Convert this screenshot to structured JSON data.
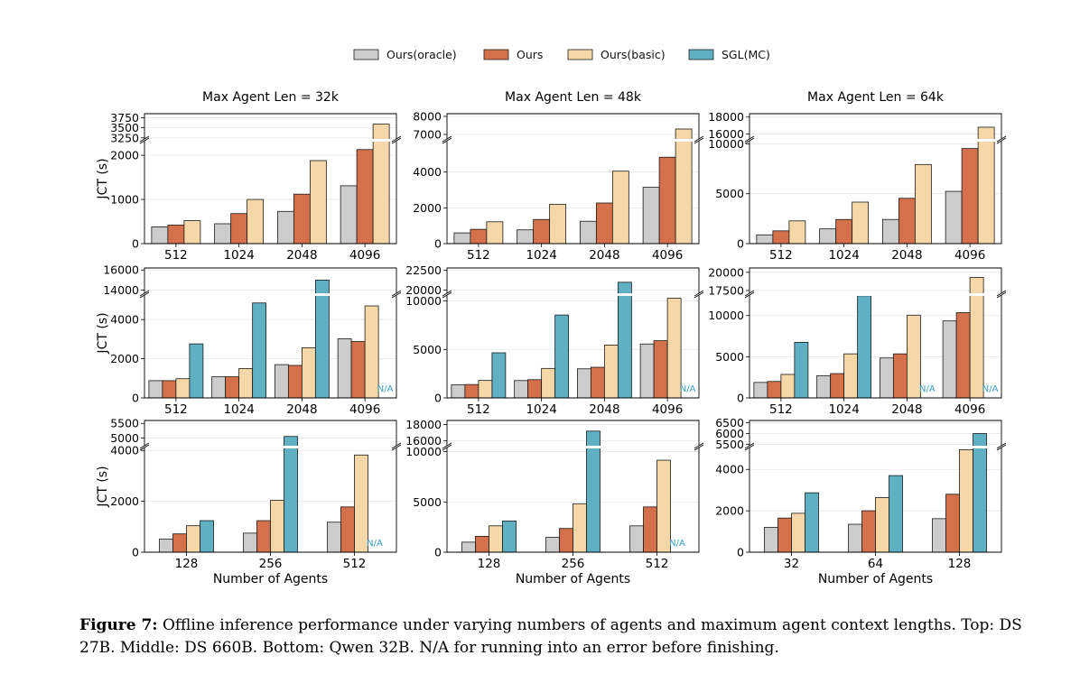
{
  "colors": {
    "oracle": "#cccccc",
    "ours": "#d4704a",
    "basic": "#f5d7a8",
    "sgl": "#5fb0c3",
    "na": "#3a9bc0"
  },
  "legend": [
    {
      "key": "oracle",
      "label": "Ours(oracle)"
    },
    {
      "key": "ours",
      "label": "Ours"
    },
    {
      "key": "basic",
      "label": "Ours(basic)"
    },
    {
      "key": "sgl",
      "label": "SGL(MC)"
    }
  ],
  "caption": {
    "prefix": "Figure 7:",
    "text": "Offline inference performance under varying numbers of agents and maximum agent context lengths. Top: DS 27B. Middle: DS 660B. Bottom: Qwen 32B. N/A for running into an error before finishing."
  },
  "chart_data": [
    {
      "type": "bar",
      "title": "Max Agent Len = 32k",
      "ylabel": "JCT (s)",
      "xlabel": "",
      "categories": [
        "512",
        "1024",
        "2048",
        "4096"
      ],
      "series": [
        {
          "name": "Ours(oracle)",
          "key": "oracle",
          "values": [
            380,
            450,
            730,
            1310
          ]
        },
        {
          "name": "Ours",
          "key": "ours",
          "values": [
            420,
            680,
            1120,
            2130
          ]
        },
        {
          "name": "Ours(basic)",
          "key": "basic",
          "values": [
            520,
            1000,
            1880,
            3590
          ]
        }
      ],
      "lower_ylim": [
        0,
        2350
      ],
      "lower_ticks": [
        0,
        1000,
        2000
      ],
      "upper_ylim": [
        3200,
        3850
      ],
      "upper_ticks": [
        3250,
        3500,
        3750
      ],
      "na": []
    },
    {
      "type": "bar",
      "title": "Max Agent Len = 48k",
      "ylabel": "",
      "xlabel": "",
      "categories": [
        "512",
        "1024",
        "2048",
        "4096"
      ],
      "series": [
        {
          "name": "Ours(oracle)",
          "key": "oracle",
          "values": [
            600,
            770,
            1250,
            3150
          ]
        },
        {
          "name": "Ours",
          "key": "ours",
          "values": [
            800,
            1350,
            2270,
            4830
          ]
        },
        {
          "name": "Ours(basic)",
          "key": "basic",
          "values": [
            1220,
            2200,
            4050,
            7300
          ]
        }
      ],
      "lower_ylim": [
        0,
        5800
      ],
      "lower_ticks": [
        0,
        2000,
        4000
      ],
      "upper_ylim": [
        6700,
        8150
      ],
      "upper_ticks": [
        7000,
        8000
      ],
      "na": []
    },
    {
      "type": "bar",
      "title": "Max Agent Len = 64k",
      "ylabel": "",
      "xlabel": "",
      "categories": [
        "512",
        "1024",
        "2048",
        "4096"
      ],
      "series": [
        {
          "name": "Ours(oracle)",
          "key": "oracle",
          "values": [
            880,
            1480,
            2420,
            5240
          ]
        },
        {
          "name": "Ours",
          "key": "ours",
          "values": [
            1280,
            2420,
            4540,
            9530
          ]
        },
        {
          "name": "Ours(basic)",
          "key": "basic",
          "values": [
            2280,
            4160,
            7930,
            16800
          ]
        }
      ],
      "lower_ylim": [
        0,
        10400
      ],
      "lower_ticks": [
        0,
        5000,
        10000
      ],
      "upper_ylim": [
        15300,
        18400
      ],
      "upper_ticks": [
        16000,
        18000
      ],
      "na": []
    },
    {
      "type": "bar",
      "title": "",
      "ylabel": "JCT (s)",
      "xlabel": "",
      "categories": [
        "512",
        "1024",
        "2048",
        "4096"
      ],
      "series": [
        {
          "name": "Ours(oracle)",
          "key": "oracle",
          "values": [
            880,
            1080,
            1700,
            3020
          ]
        },
        {
          "name": "Ours",
          "key": "ours",
          "values": [
            880,
            1080,
            1660,
            2880
          ]
        },
        {
          "name": "Ours(basic)",
          "key": "basic",
          "values": [
            980,
            1500,
            2560,
            4700
          ]
        },
        {
          "name": "SGL(MC)",
          "key": "sgl",
          "values": [
            2760,
            4850,
            15000,
            null
          ]
        }
      ],
      "lower_ylim": [
        0,
        5300
      ],
      "lower_ticks": [
        0,
        2000,
        4000
      ],
      "upper_ylim": [
        13600,
        16200
      ],
      "upper_ticks": [
        14000,
        16000
      ],
      "na": [
        "4096"
      ]
    },
    {
      "type": "bar",
      "title": "",
      "ylabel": "",
      "xlabel": "",
      "categories": [
        "512",
        "1024",
        "2048",
        "4096"
      ],
      "series": [
        {
          "name": "Ours(oracle)",
          "key": "oracle",
          "values": [
            1350,
            1790,
            3000,
            5560
          ]
        },
        {
          "name": "Ours",
          "key": "ours",
          "values": [
            1380,
            1880,
            3160,
            5900
          ]
        },
        {
          "name": "Ours(basic)",
          "key": "basic",
          "values": [
            1800,
            3040,
            5450,
            10280
          ]
        },
        {
          "name": "SGL(MC)",
          "key": "sgl",
          "values": [
            4650,
            8550,
            21000,
            null
          ]
        }
      ],
      "lower_ylim": [
        0,
        10700
      ],
      "lower_ticks": [
        0,
        5000,
        10000
      ],
      "upper_ylim": [
        19500,
        22800
      ],
      "upper_ticks": [
        20000,
        22500
      ],
      "na": [
        "4096"
      ]
    },
    {
      "type": "bar",
      "title": "",
      "ylabel": "",
      "xlabel": "",
      "categories": [
        "512",
        "1024",
        "2048",
        "4096"
      ],
      "series": [
        {
          "name": "Ours(oracle)",
          "key": "oracle",
          "values": [
            1880,
            2700,
            4850,
            9350
          ]
        },
        {
          "name": "Ours",
          "key": "ours",
          "values": [
            2000,
            2950,
            5350,
            10350
          ]
        },
        {
          "name": "Ours(basic)",
          "key": "basic",
          "values": [
            2850,
            5350,
            10050,
            19300
          ]
        },
        {
          "name": "SGL(MC)",
          "key": "sgl",
          "values": [
            6750,
            12400,
            null,
            null
          ]
        }
      ],
      "lower_ylim": [
        0,
        12600
      ],
      "lower_ticks": [
        0,
        5000,
        10000
      ],
      "upper_ylim": [
        17000,
        20600
      ],
      "upper_ticks": [
        17500,
        20000
      ],
      "na": [
        "2048",
        "4096"
      ]
    },
    {
      "type": "bar",
      "title": "",
      "ylabel": "JCT (s)",
      "xlabel": "Number of Agents",
      "categories": [
        "128",
        "256",
        "512"
      ],
      "series": [
        {
          "name": "Ours(oracle)",
          "key": "oracle",
          "values": [
            520,
            750,
            1180
          ]
        },
        {
          "name": "Ours",
          "key": "ours",
          "values": [
            720,
            1240,
            1780
          ]
        },
        {
          "name": "Ours(basic)",
          "key": "basic",
          "values": [
            1040,
            2040,
            3820
          ]
        },
        {
          "name": "SGL(MC)",
          "key": "sgl",
          "values": [
            1240,
            5050,
            null
          ]
        }
      ],
      "lower_ylim": [
        0,
        4150
      ],
      "lower_ticks": [
        0,
        2000,
        4000
      ],
      "upper_ylim": [
        4700,
        5600
      ],
      "upper_ticks": [
        5000,
        5500
      ],
      "na": [
        "512"
      ]
    },
    {
      "type": "bar",
      "title": "",
      "ylabel": "",
      "xlabel": "Number of Agents",
      "categories": [
        "128",
        "256",
        "512"
      ],
      "series": [
        {
          "name": "Ours(oracle)",
          "key": "oracle",
          "values": [
            1000,
            1480,
            2620
          ]
        },
        {
          "name": "Ours",
          "key": "ours",
          "values": [
            1580,
            2360,
            4500
          ]
        },
        {
          "name": "Ours(basic)",
          "key": "basic",
          "values": [
            2620,
            4820,
            9150
          ]
        },
        {
          "name": "SGL(MC)",
          "key": "sgl",
          "values": [
            3100,
            17200,
            null
          ]
        }
      ],
      "lower_ylim": [
        0,
        10500
      ],
      "lower_ticks": [
        0,
        5000,
        10000
      ],
      "upper_ylim": [
        15300,
        18500
      ],
      "upper_ticks": [
        16000,
        18000
      ],
      "na": [
        "512"
      ]
    },
    {
      "type": "bar",
      "title": "",
      "ylabel": "",
      "xlabel": "Number of Agents",
      "categories": [
        "32",
        "64",
        "128"
      ],
      "series": [
        {
          "name": "Ours(oracle)",
          "key": "oracle",
          "values": [
            1200,
            1350,
            1620
          ]
        },
        {
          "name": "Ours",
          "key": "ours",
          "values": [
            1650,
            2000,
            2800
          ]
        },
        {
          "name": "Ours(basic)",
          "key": "basic",
          "values": [
            1880,
            2640,
            4950
          ]
        },
        {
          "name": "SGL(MC)",
          "key": "sgl",
          "values": [
            2870,
            3700,
            6000
          ]
        }
      ],
      "lower_ylim": [
        0,
        5100
      ],
      "lower_ticks": [
        0,
        2000,
        4000
      ],
      "upper_ylim": [
        5400,
        6600
      ],
      "upper_ticks": [
        5500,
        6000,
        6500
      ],
      "na": []
    }
  ],
  "na_label": "N/A"
}
